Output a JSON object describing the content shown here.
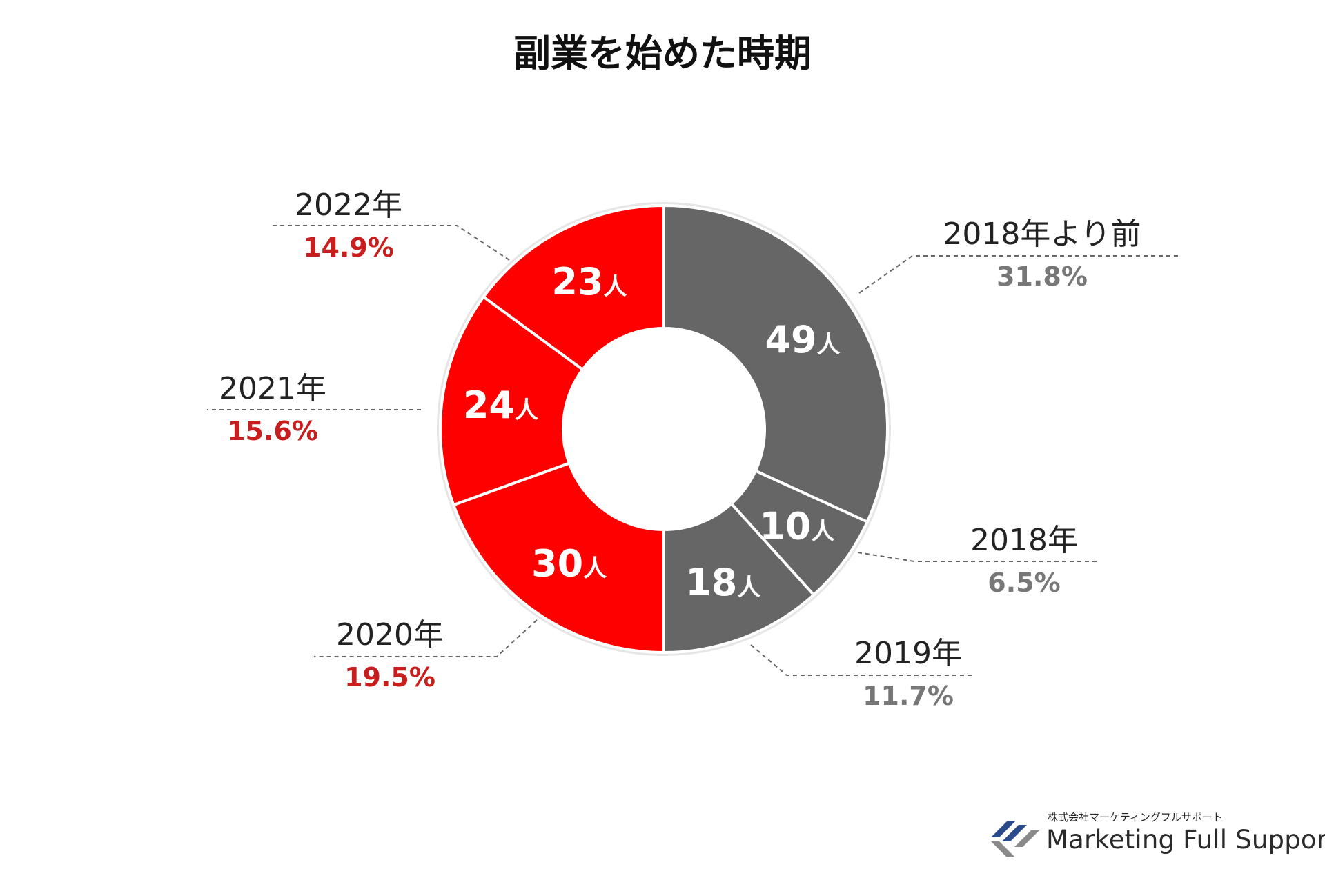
{
  "chart_data": {
    "type": "pie",
    "variant": "donut",
    "title": "副業を始めた時期",
    "unit_suffix": "人",
    "slices": [
      {
        "label": "2018年より前",
        "count": 49,
        "percent": "31.8%",
        "color": "#666666",
        "pct_color": "#777777"
      },
      {
        "label": "2018年",
        "count": 10,
        "percent": "6.5%",
        "color": "#666666",
        "pct_color": "#777777"
      },
      {
        "label": "2019年",
        "count": 18,
        "percent": "11.7%",
        "color": "#666666",
        "pct_color": "#777777"
      },
      {
        "label": "2020年",
        "count": 30,
        "percent": "19.5%",
        "color": "#ff0000",
        "pct_color": "#c81e1e"
      },
      {
        "label": "2021年",
        "count": 24,
        "percent": "15.6%",
        "color": "#ff0000",
        "pct_color": "#c81e1e"
      },
      {
        "label": "2022年",
        "count": 23,
        "percent": "14.9%",
        "color": "#ff0000",
        "pct_color": "#c81e1e"
      }
    ]
  },
  "brand": {
    "company": "株式会社マーケティングフルサポート",
    "name": "Marketing Full Support",
    "logo_colors": [
      "#2b4a8c",
      "#8a8a8a"
    ]
  }
}
